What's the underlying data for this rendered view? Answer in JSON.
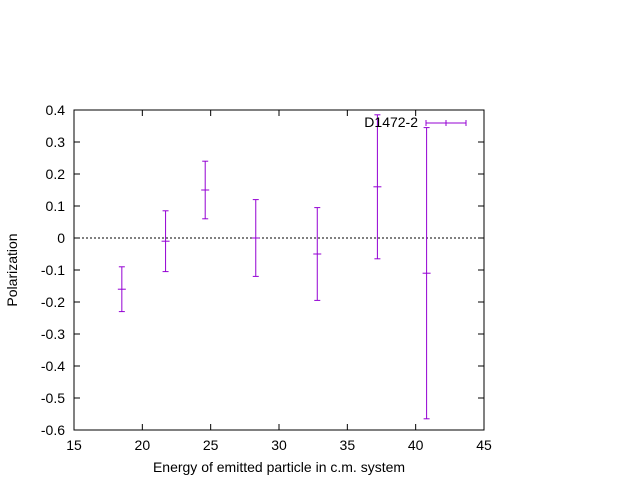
{
  "chart_data": {
    "type": "scatter",
    "title": "",
    "xlabel": "Energy of emitted particle in c.m. system",
    "ylabel": "Polarization",
    "xlim": [
      15,
      45
    ],
    "ylim": [
      -0.6,
      0.4
    ],
    "xticks": [
      "15",
      "20",
      "25",
      "30",
      "35",
      "40",
      "45"
    ],
    "yticks": [
      "-0.6",
      "-0.5",
      "-0.4",
      "-0.3",
      "-0.2",
      "-0.1",
      "0",
      "0.1",
      "0.2",
      "0.3",
      "0.4"
    ],
    "grid": false,
    "zero_line": true,
    "legend_position": "top-right",
    "series": [
      {
        "name": "D1472-2",
        "color": "#9400d3",
        "points": [
          {
            "x": 18.5,
            "y": -0.16,
            "err": 0.07
          },
          {
            "x": 21.7,
            "y": -0.01,
            "err": 0.095
          },
          {
            "x": 24.6,
            "y": 0.15,
            "err": 0.09
          },
          {
            "x": 28.3,
            "y": 0.0,
            "err": 0.12
          },
          {
            "x": 32.8,
            "y": -0.05,
            "err": 0.145
          },
          {
            "x": 37.2,
            "y": 0.16,
            "err": 0.225
          },
          {
            "x": 40.8,
            "y": -0.11,
            "err": 0.455
          }
        ]
      }
    ]
  }
}
